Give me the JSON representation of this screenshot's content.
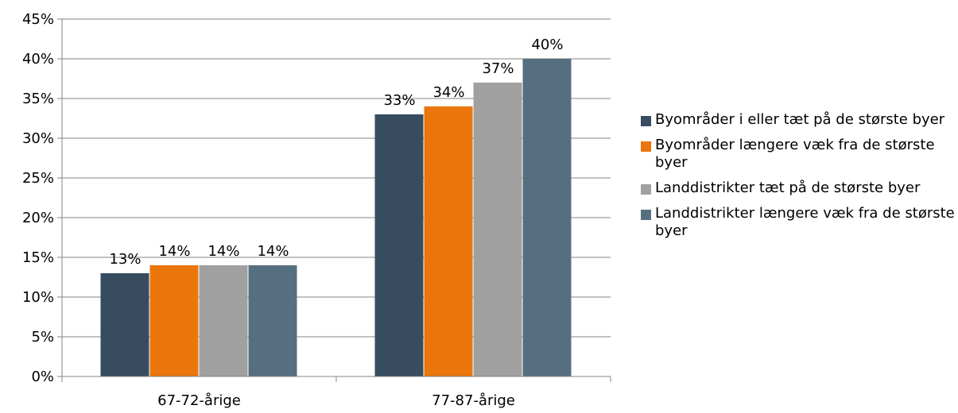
{
  "chart_data": {
    "type": "bar",
    "categories": [
      "67-72-årige",
      "77-87-årige"
    ],
    "series": [
      {
        "name": "Byområder i eller tæt på de største byer",
        "values": [
          13,
          33
        ],
        "labels": [
          "13%",
          "33%"
        ],
        "color": "#374C60"
      },
      {
        "name": "Byområder længere væk fra de største byer",
        "values": [
          14,
          34
        ],
        "labels": [
          "14%",
          "34%"
        ],
        "color": "#EB760B"
      },
      {
        "name": "Landdistrikter tæt på de største byer",
        "values": [
          14,
          37
        ],
        "labels": [
          "14%",
          "37%"
        ],
        "color": "#A0A0A0"
      },
      {
        "name": "Landdistrikter længere væk fra de største byer",
        "values": [
          14,
          40
        ],
        "labels": [
          "14%",
          "40%"
        ],
        "color": "#566F80"
      }
    ],
    "ylim": [
      0,
      45
    ],
    "yticks": [
      "0%",
      "5%",
      "10%",
      "15%",
      "20%",
      "25%",
      "30%",
      "35%",
      "40%",
      "45%"
    ],
    "grid": true,
    "legend_position": "right"
  }
}
